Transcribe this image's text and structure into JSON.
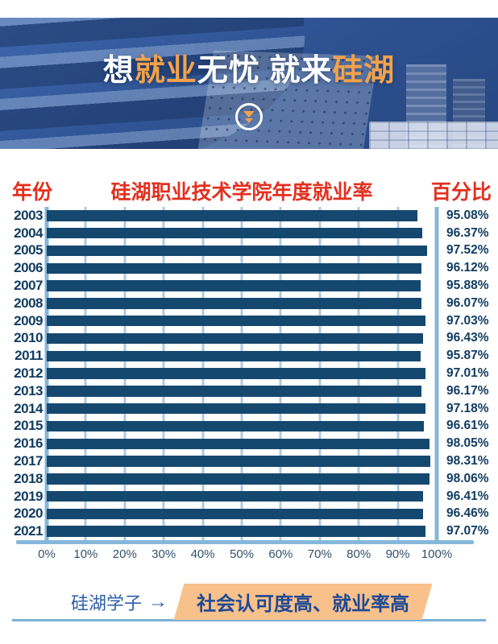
{
  "hero": {
    "title_segments": [
      {
        "text": "想",
        "color": "white"
      },
      {
        "text": "就业",
        "color": "orange"
      },
      {
        "text": "无忧",
        "color": "white"
      },
      {
        "text": " 就来",
        "color": "white"
      },
      {
        "text": "硅湖",
        "color": "orange"
      }
    ],
    "scroll_icon": "double-chevron-down",
    "accent_orange": "#f2a24c"
  },
  "chart_data": {
    "type": "bar",
    "orientation": "horizontal",
    "title": "硅湖职业技术学院年度就业率",
    "category_axis_title": "年份",
    "value_axis_title": "百分比",
    "categories": [
      "2003",
      "2004",
      "2005",
      "2006",
      "2007",
      "2008",
      "2009",
      "2010",
      "2011",
      "2012",
      "2013",
      "2014",
      "2015",
      "2016",
      "2017",
      "2018",
      "2019",
      "2020",
      "2021"
    ],
    "values": [
      95.08,
      96.37,
      97.52,
      96.12,
      95.88,
      96.07,
      97.03,
      96.43,
      95.87,
      97.01,
      96.17,
      97.18,
      96.61,
      98.05,
      98.31,
      98.06,
      96.41,
      96.46,
      97.07
    ],
    "value_labels": [
      "95.08%",
      "96.37%",
      "97.52%",
      "96.12%",
      "95.88%",
      "96.07%",
      "97.03%",
      "96.43%",
      "95.87%",
      "97.01%",
      "96.17%",
      "97.18%",
      "96.61%",
      "98.05%",
      "98.31%",
      "98.06%",
      "96.41%",
      "96.46%",
      "97.07%"
    ],
    "x_ticks": [
      "0%",
      "10%",
      "20%",
      "30%",
      "40%",
      "50%",
      "60%",
      "70%",
      "80%",
      "90%",
      "100%"
    ],
    "xlim": [
      0,
      100
    ],
    "grid": true,
    "legend": false,
    "title_color": "#e2301f",
    "bar_color": "#15486f",
    "grid_color": "#abcbe2",
    "axis_color": "#85b7da",
    "label_color": "#123d61",
    "tick_color": "#32506b"
  },
  "footer": {
    "label": "硅湖学子",
    "arrow": "→",
    "highlight_text": "社会认可度高、就业率高",
    "highlight_bg": "#f8c18c",
    "highlight_text_color": "#1d4a94",
    "label_color": "#2d5fa8",
    "line_color": "#7cb1d8"
  }
}
